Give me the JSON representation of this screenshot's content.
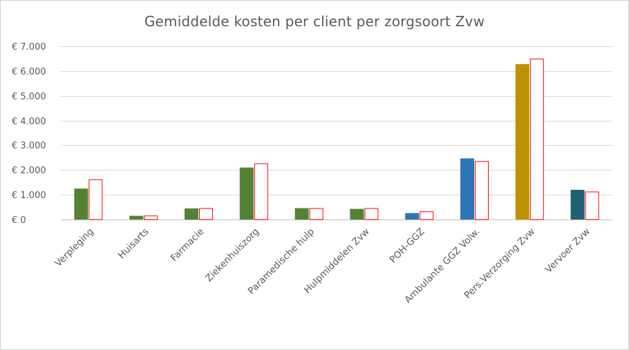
{
  "chart_data": {
    "type": "bar",
    "title": "Gemiddelde kosten per client per zorgsoort Zvw",
    "categories": [
      "Verpleging",
      "Huisarts",
      "Farmacie",
      "Ziekenhuiszorg",
      "Paramedische hulp",
      "Hulpmiddelen Zvw",
      "POH-GGZ",
      "Ambulante GGZ Volw.",
      "Pers.Verzorging Zvw",
      "Vervoer Zvw"
    ],
    "series": [
      {
        "fill_colors": [
          "#548235",
          "#548235",
          "#548235",
          "#548235",
          "#548235",
          "#548235",
          "#2e75b6",
          "#2e75b6",
          "#bf9000",
          "#1f6075"
        ],
        "values": [
          1250,
          150,
          450,
          2100,
          460,
          430,
          260,
          2470,
          6280,
          1200
        ]
      },
      {
        "fill_colors": [
          "#ffffff"
        ],
        "stroke_color": "#ff0000",
        "values": [
          1620,
          160,
          460,
          2270,
          460,
          460,
          330,
          2360,
          6500,
          1130
        ]
      }
    ],
    "ylim": [
      0,
      7000
    ],
    "yticks": [
      0,
      1000,
      2000,
      3000,
      4000,
      5000,
      6000,
      7000
    ],
    "ytick_labels": [
      "€ 0",
      "€ 1.000",
      "€ 2.000",
      "€ 3.000",
      "€ 4.000",
      "€ 5.000",
      "€ 6.000",
      "€ 7.000"
    ],
    "grid": true,
    "legend": "none"
  }
}
